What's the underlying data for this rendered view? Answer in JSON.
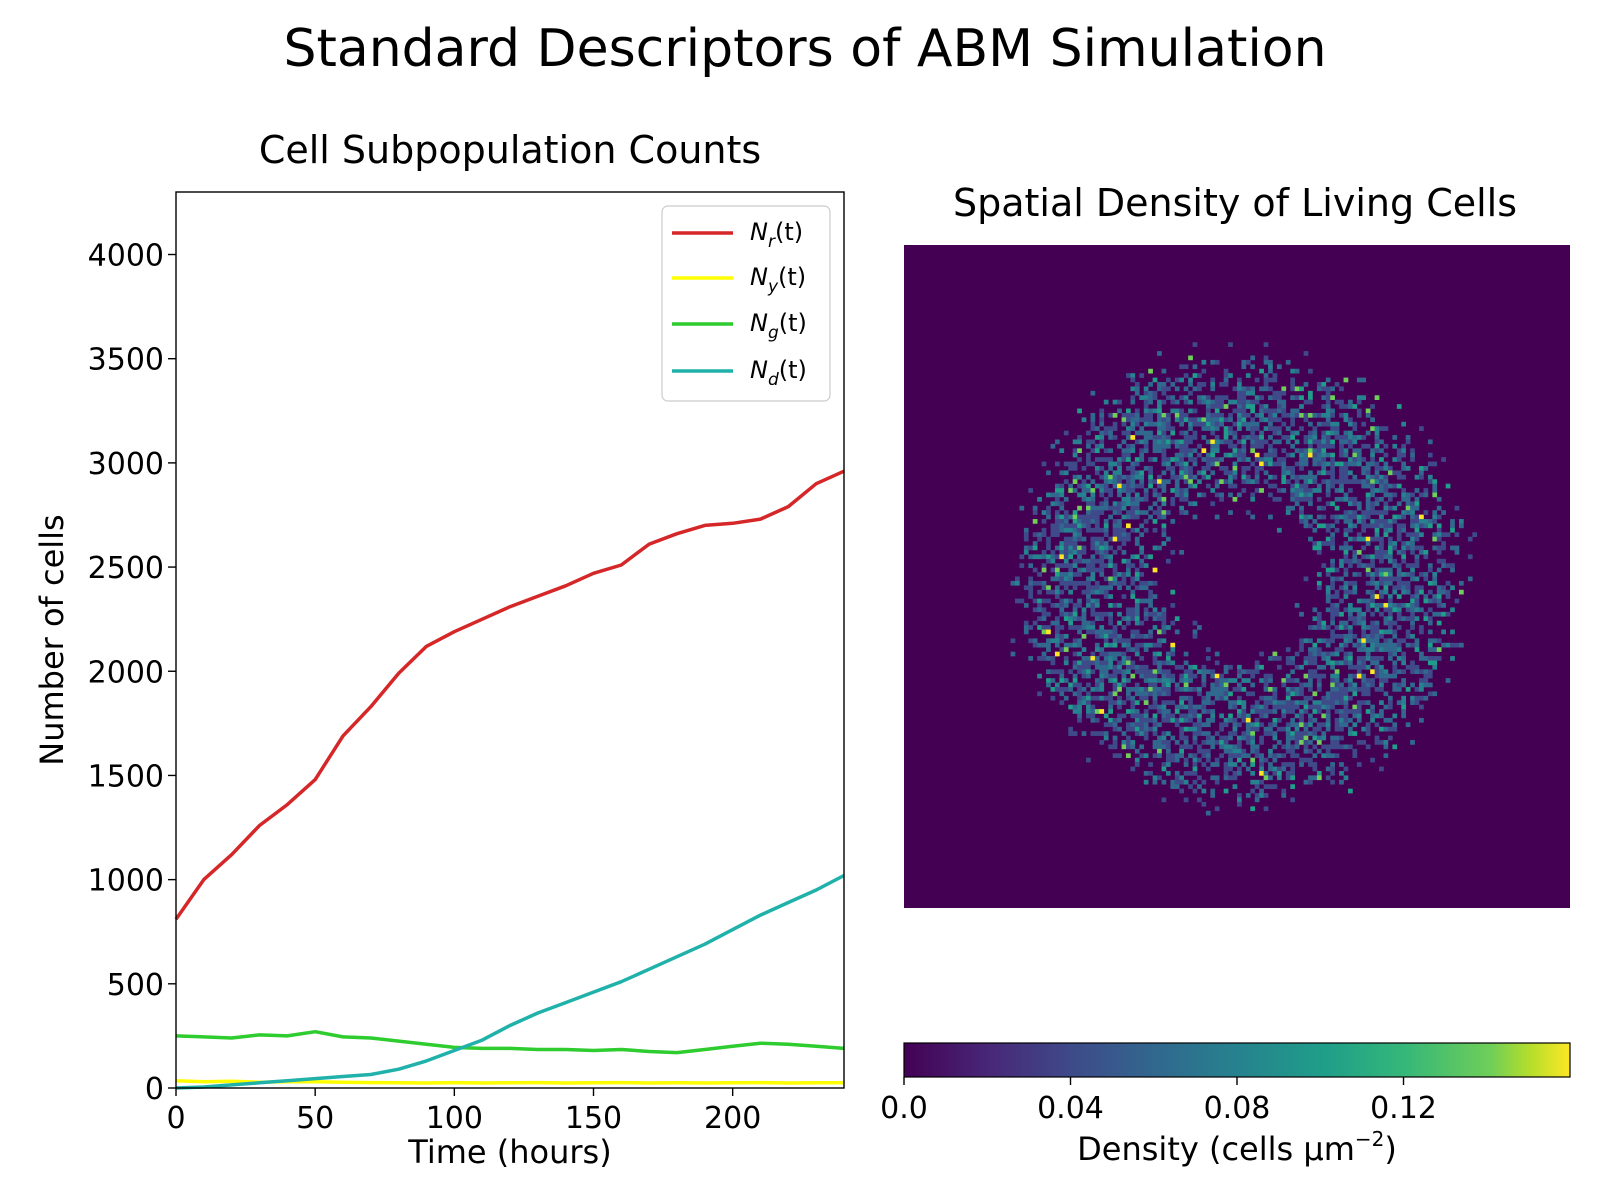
{
  "figure": {
    "suptitle": "Standard Descriptors of ABM Simulation"
  },
  "chart_data": [
    {
      "type": "line",
      "title": "Cell Subpopulation Counts",
      "xlabel": "Time (hours)",
      "ylabel": "Number of cells",
      "xlim": [
        0,
        240
      ],
      "ylim": [
        0,
        4300
      ],
      "x_ticks": [
        0,
        50,
        100,
        150,
        200
      ],
      "y_ticks": [
        0,
        500,
        1000,
        1500,
        2000,
        2500,
        3000,
        3500,
        4000
      ],
      "grid": false,
      "legend_position": "upper right",
      "series": [
        {
          "name": "N_r(t)",
          "legend_main": "N",
          "legend_sub": "r",
          "legend_tail": "(t)",
          "color": "#d62728",
          "x": [
            0,
            10,
            20,
            30,
            40,
            50,
            60,
            70,
            80,
            90,
            100,
            110,
            120,
            130,
            140,
            150,
            160,
            170,
            180,
            190,
            200,
            210,
            220,
            230,
            240
          ],
          "y": [
            810,
            1000,
            1120,
            1260,
            1360,
            1480,
            1690,
            1830,
            1990,
            2120,
            2190,
            2250,
            2310,
            2360,
            2410,
            2470,
            2510,
            2610,
            2660,
            2700,
            2710,
            2730,
            2790,
            2900,
            2960
          ]
        },
        {
          "name": "N_y(t)",
          "legend_main": "N",
          "legend_sub": "y",
          "legend_tail": "(t)",
          "color": "#ffff00",
          "x": [
            0,
            10,
            20,
            30,
            40,
            50,
            60,
            70,
            80,
            90,
            100,
            110,
            120,
            130,
            140,
            150,
            160,
            170,
            180,
            190,
            200,
            210,
            220,
            230,
            240
          ],
          "y": [
            35,
            30,
            32,
            28,
            30,
            30,
            28,
            26,
            25,
            24,
            26,
            24,
            25,
            26,
            24,
            25,
            26,
            24,
            25,
            24,
            25,
            26,
            24,
            25,
            25
          ]
        },
        {
          "name": "N_g(t)",
          "legend_main": "N",
          "legend_sub": "g",
          "legend_tail": "(t)",
          "color": "#2ecc2e",
          "x": [
            0,
            10,
            20,
            30,
            40,
            50,
            60,
            70,
            80,
            90,
            100,
            110,
            120,
            130,
            140,
            150,
            160,
            170,
            180,
            190,
            200,
            210,
            220,
            230,
            240
          ],
          "y": [
            250,
            245,
            240,
            255,
            250,
            270,
            245,
            240,
            225,
            210,
            195,
            190,
            190,
            185,
            185,
            180,
            185,
            175,
            170,
            185,
            200,
            215,
            210,
            200,
            190
          ]
        },
        {
          "name": "N_d(t)",
          "legend_main": "N",
          "legend_sub": "d",
          "legend_tail": "(t)",
          "color": "#20b2aa",
          "x": [
            0,
            10,
            20,
            30,
            40,
            50,
            60,
            70,
            80,
            90,
            100,
            110,
            120,
            130,
            140,
            150,
            160,
            170,
            180,
            190,
            200,
            210,
            220,
            230,
            240
          ],
          "y": [
            0,
            5,
            15,
            25,
            35,
            45,
            55,
            65,
            90,
            130,
            180,
            230,
            300,
            360,
            410,
            460,
            510,
            570,
            630,
            690,
            760,
            830,
            890,
            950,
            1020
          ]
        }
      ]
    },
    {
      "type": "heatmap",
      "title": "Spatial Density of Living Cells",
      "description_visible": "ring-shaped distribution of living cells around an empty core",
      "colormap": "viridis",
      "colorbar_label_main": "Density (cells μm",
      "colorbar_label_sup": "−2",
      "colorbar_label_tail": ")",
      "colorbar_range": [
        0,
        0.16
      ],
      "colorbar_ticks": [
        "0.0",
        "0.04",
        "0.08",
        "0.12"
      ],
      "colorbar_tick_values": [
        0,
        0.04,
        0.08,
        0.12
      ],
      "background_color": "#440154",
      "ring": {
        "inner_radius_fraction": 0.12,
        "outer_radius_fraction": 0.33
      }
    }
  ]
}
